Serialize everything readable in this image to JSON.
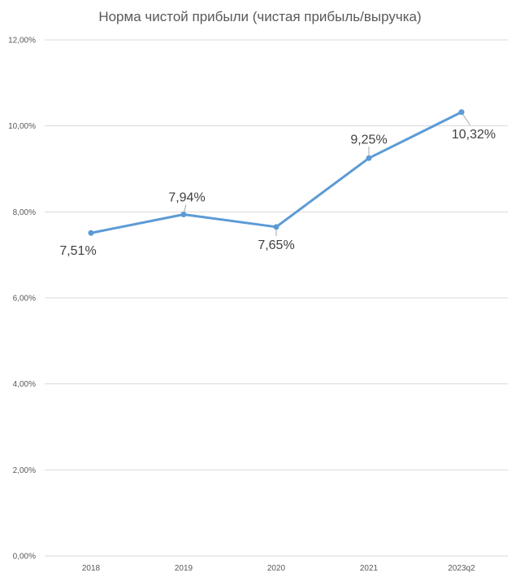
{
  "chart_data": {
    "type": "line",
    "title": "Норма чистой прибыли (чистая прибыль/выручка)",
    "categories": [
      "2018",
      "2019",
      "2020",
      "2021",
      "2023q2"
    ],
    "series": [
      {
        "values": [
          7.51,
          7.94,
          7.65,
          9.25,
          10.32
        ],
        "labels": [
          "7,51%",
          "7,94%",
          "7,65%",
          "9,25%",
          "10,32%"
        ],
        "color": "#5b9bd5"
      }
    ],
    "ylim": [
      0,
      12
    ],
    "yticks": [
      0,
      2,
      4,
      6,
      8,
      10,
      12
    ],
    "ytick_labels": [
      "0,00%",
      "2,00%",
      "4,00%",
      "6,00%",
      "8,00%",
      "10,00%",
      "12,00%"
    ],
    "grid": true,
    "legend": "none",
    "xlabel": "",
    "ylabel": ""
  }
}
